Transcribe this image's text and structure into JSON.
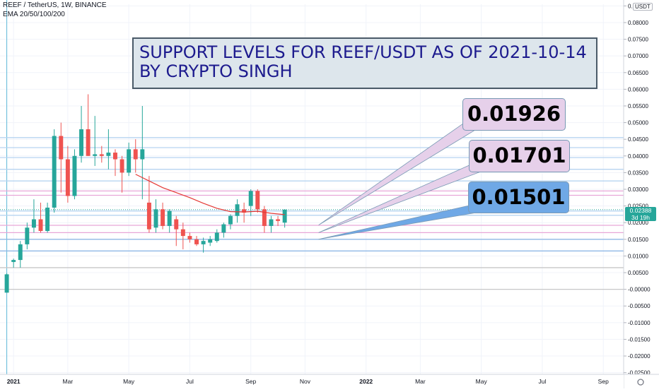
{
  "header": {
    "symbol_line": "REEF / TetherUS, 1W, BINANCE",
    "indicator_line": "EMA 20/50/100/200",
    "currency": "USDT"
  },
  "annotation": {
    "line1": "SUPPORT LEVELS FOR REEF/USDT AS OF 2021-10-14",
    "line2": "BY CRYPTO SINGH"
  },
  "callouts": [
    {
      "label": "0.01926",
      "color": "#e6d0ea"
    },
    {
      "label": "0.01701",
      "color": "#e6d0ea"
    },
    {
      "label": "0.01501",
      "color": "#6fa8e6"
    }
  ],
  "last_price": {
    "value": "0.02388",
    "countdown": "3d 19h"
  },
  "colors": {
    "up": "#26a69a",
    "down": "#ef5350",
    "ema": "#e53935",
    "grid": "#f0f3fa"
  },
  "chart_data": {
    "type": "candlestick",
    "symbol": "REEF / TetherUS",
    "interval": "1W",
    "exchange": "BINANCE",
    "y_range": [
      -0.0255,
      0.0855
    ],
    "y_ticks": [
      "0.08500",
      "0.08000",
      "0.07500",
      "0.07000",
      "0.06500",
      "0.06000",
      "0.05500",
      "0.05000",
      "0.04500",
      "0.04000",
      "0.03500",
      "0.03000",
      "0.02500",
      "0.02000",
      "0.01500",
      "0.01000",
      "0.00500",
      "-0.00000",
      "-0.00500",
      "-0.01000",
      "-0.01500",
      "-0.02000",
      "-0.02500"
    ],
    "y_tick_values": [
      0.085,
      0.08,
      0.075,
      0.07,
      0.065,
      0.06,
      0.055,
      0.05,
      0.045,
      0.04,
      0.035,
      0.03,
      0.025,
      0.02,
      0.015,
      0.01,
      0.005,
      0,
      -0.005,
      -0.01,
      -0.015,
      -0.02,
      -0.025
    ],
    "x_range": [
      "2020-12-21",
      "2022-09-26"
    ],
    "x_labels": [
      {
        "label": "2021",
        "date": "2021-01-04"
      },
      {
        "label": "Mar",
        "date": "2021-03-01"
      },
      {
        "label": "May",
        "date": "2021-05-03"
      },
      {
        "label": "Jul",
        "date": "2021-07-05"
      },
      {
        "label": "Sep",
        "date": "2021-09-06"
      },
      {
        "label": "Nov",
        "date": "2021-11-01"
      },
      {
        "label": "2022",
        "date": "2022-01-03"
      },
      {
        "label": "Mar",
        "date": "2022-02-28"
      },
      {
        "label": "May",
        "date": "2022-05-02"
      },
      {
        "label": "Jul",
        "date": "2022-07-04"
      },
      {
        "label": "Sep",
        "date": "2022-09-05"
      }
    ],
    "candles": [
      {
        "date": "2020-12-28",
        "o": -0.001,
        "h": 0.0048,
        "l": -0.001,
        "c": 0.0045
      },
      {
        "date": "2021-01-04",
        "o": 0.0082,
        "h": 0.0092,
        "l": 0.0065,
        "c": 0.0088
      },
      {
        "date": "2021-01-11",
        "o": 0.0088,
        "h": 0.0145,
        "l": 0.0065,
        "c": 0.0135
      },
      {
        "date": "2021-01-18",
        "o": 0.0135,
        "h": 0.02,
        "l": 0.012,
        "c": 0.0185
      },
      {
        "date": "2021-01-25",
        "o": 0.0185,
        "h": 0.027,
        "l": 0.017,
        "c": 0.021
      },
      {
        "date": "2021-02-01",
        "o": 0.021,
        "h": 0.026,
        "l": 0.017,
        "c": 0.0175
      },
      {
        "date": "2021-02-08",
        "o": 0.0175,
        "h": 0.026,
        "l": 0.017,
        "c": 0.0245
      },
      {
        "date": "2021-02-15",
        "o": 0.0245,
        "h": 0.048,
        "l": 0.023,
        "c": 0.046
      },
      {
        "date": "2021-02-22",
        "o": 0.046,
        "h": 0.05,
        "l": 0.029,
        "c": 0.039
      },
      {
        "date": "2021-03-01",
        "o": 0.039,
        "h": 0.043,
        "l": 0.026,
        "c": 0.028
      },
      {
        "date": "2021-03-08",
        "o": 0.028,
        "h": 0.042,
        "l": 0.027,
        "c": 0.04
      },
      {
        "date": "2021-03-15",
        "o": 0.04,
        "h": 0.055,
        "l": 0.038,
        "c": 0.048
      },
      {
        "date": "2021-03-22",
        "o": 0.048,
        "h": 0.0585,
        "l": 0.04,
        "c": 0.04
      },
      {
        "date": "2021-03-29",
        "o": 0.04,
        "h": 0.052,
        "l": 0.037,
        "c": 0.0405
      },
      {
        "date": "2021-04-05",
        "o": 0.0405,
        "h": 0.043,
        "l": 0.038,
        "c": 0.04
      },
      {
        "date": "2021-04-12",
        "o": 0.04,
        "h": 0.048,
        "l": 0.036,
        "c": 0.041
      },
      {
        "date": "2021-04-19",
        "o": 0.041,
        "h": 0.042,
        "l": 0.034,
        "c": 0.039
      },
      {
        "date": "2021-04-26",
        "o": 0.039,
        "h": 0.04,
        "l": 0.029,
        "c": 0.035
      },
      {
        "date": "2021-05-03",
        "o": 0.035,
        "h": 0.044,
        "l": 0.034,
        "c": 0.042
      },
      {
        "date": "2021-05-10",
        "o": 0.042,
        "h": 0.045,
        "l": 0.035,
        "c": 0.039
      },
      {
        "date": "2021-05-17",
        "o": 0.039,
        "h": 0.055,
        "l": 0.027,
        "c": 0.042
      },
      {
        "date": "2021-05-24",
        "o": 0.026,
        "h": 0.034,
        "l": 0.017,
        "c": 0.018
      },
      {
        "date": "2021-05-31",
        "o": 0.0185,
        "h": 0.027,
        "l": 0.017,
        "c": 0.024
      },
      {
        "date": "2021-06-07",
        "o": 0.024,
        "h": 0.026,
        "l": 0.018,
        "c": 0.019
      },
      {
        "date": "2021-06-14",
        "o": 0.019,
        "h": 0.024,
        "l": 0.017,
        "c": 0.0235
      },
      {
        "date": "2021-06-21",
        "o": 0.021,
        "h": 0.022,
        "l": 0.013,
        "c": 0.018
      },
      {
        "date": "2021-06-28",
        "o": 0.018,
        "h": 0.02,
        "l": 0.012,
        "c": 0.016
      },
      {
        "date": "2021-07-05",
        "o": 0.016,
        "h": 0.017,
        "l": 0.014,
        "c": 0.015
      },
      {
        "date": "2021-07-12",
        "o": 0.015,
        "h": 0.016,
        "l": 0.013,
        "c": 0.0135
      },
      {
        "date": "2021-07-19",
        "o": 0.0135,
        "h": 0.0155,
        "l": 0.011,
        "c": 0.0145
      },
      {
        "date": "2021-07-26",
        "o": 0.014,
        "h": 0.016,
        "l": 0.013,
        "c": 0.015
      },
      {
        "date": "2021-08-02",
        "o": 0.0145,
        "h": 0.018,
        "l": 0.014,
        "c": 0.017
      },
      {
        "date": "2021-08-09",
        "o": 0.017,
        "h": 0.02,
        "l": 0.0155,
        "c": 0.0195
      },
      {
        "date": "2021-08-16",
        "o": 0.0195,
        "h": 0.0225,
        "l": 0.018,
        "c": 0.022
      },
      {
        "date": "2021-08-23",
        "o": 0.022,
        "h": 0.027,
        "l": 0.02,
        "c": 0.0255
      },
      {
        "date": "2021-08-30",
        "o": 0.024,
        "h": 0.026,
        "l": 0.02,
        "c": 0.023
      },
      {
        "date": "2021-09-06",
        "o": 0.025,
        "h": 0.03,
        "l": 0.022,
        "c": 0.0295
      },
      {
        "date": "2021-09-13",
        "o": 0.0295,
        "h": 0.03,
        "l": 0.023,
        "c": 0.024
      },
      {
        "date": "2021-09-20",
        "o": 0.024,
        "h": 0.025,
        "l": 0.017,
        "c": 0.019
      },
      {
        "date": "2021-09-27",
        "o": 0.019,
        "h": 0.022,
        "l": 0.017,
        "c": 0.021
      },
      {
        "date": "2021-10-04",
        "o": 0.021,
        "h": 0.022,
        "l": 0.019,
        "c": 0.0205
      },
      {
        "date": "2021-10-11",
        "o": 0.02,
        "h": 0.024,
        "l": 0.0185,
        "c": 0.0239
      }
    ],
    "ema_line": [
      {
        "date": "2021-05-10",
        "v": 0.0345
      },
      {
        "date": "2021-05-24",
        "v": 0.0325
      },
      {
        "date": "2021-06-07",
        "v": 0.0305
      },
      {
        "date": "2021-06-21",
        "v": 0.029
      },
      {
        "date": "2021-07-05",
        "v": 0.0275
      },
      {
        "date": "2021-07-19",
        "v": 0.0258
      },
      {
        "date": "2021-08-02",
        "v": 0.0243
      },
      {
        "date": "2021-08-16",
        "v": 0.0233
      },
      {
        "date": "2021-08-30",
        "v": 0.0232
      },
      {
        "date": "2021-09-13",
        "v": 0.0234
      },
      {
        "date": "2021-09-27",
        "v": 0.0228
      },
      {
        "date": "2021-10-11",
        "v": 0.0224
      }
    ],
    "horizontal_levels": [
      {
        "v": 0.0455,
        "color": "#b7d4f0"
      },
      {
        "v": 0.0425,
        "color": "#b7d4f0"
      },
      {
        "v": 0.0395,
        "color": "#b7d4f0"
      },
      {
        "v": 0.036,
        "color": "#b7d4f0"
      },
      {
        "v": 0.0325,
        "color": "#b7d4f0"
      },
      {
        "v": 0.0295,
        "color": "#e8a7d8"
      },
      {
        "v": 0.0282,
        "color": "#e8a7d8"
      },
      {
        "v": 0.0235,
        "color": "#b7d4f0"
      },
      {
        "v": 0.0222,
        "color": "#b7d4f0"
      },
      {
        "v": 0.0192,
        "color": "#e8a7d8"
      },
      {
        "v": 0.017,
        "color": "#e8a7d8"
      },
      {
        "v": 0.015,
        "color": "#8fb8e6"
      },
      {
        "v": 0.0115,
        "color": "#8fb8e6"
      },
      {
        "v": 0.0065,
        "color": "#c8c8c8"
      },
      {
        "v": 0.0,
        "color": "#c8c8c8"
      }
    ],
    "callout_anchors": [
      {
        "date": "2021-11-15",
        "v": 0.01926
      },
      {
        "date": "2021-11-15",
        "v": 0.01701
      },
      {
        "date": "2021-11-15",
        "v": 0.01501
      }
    ]
  }
}
